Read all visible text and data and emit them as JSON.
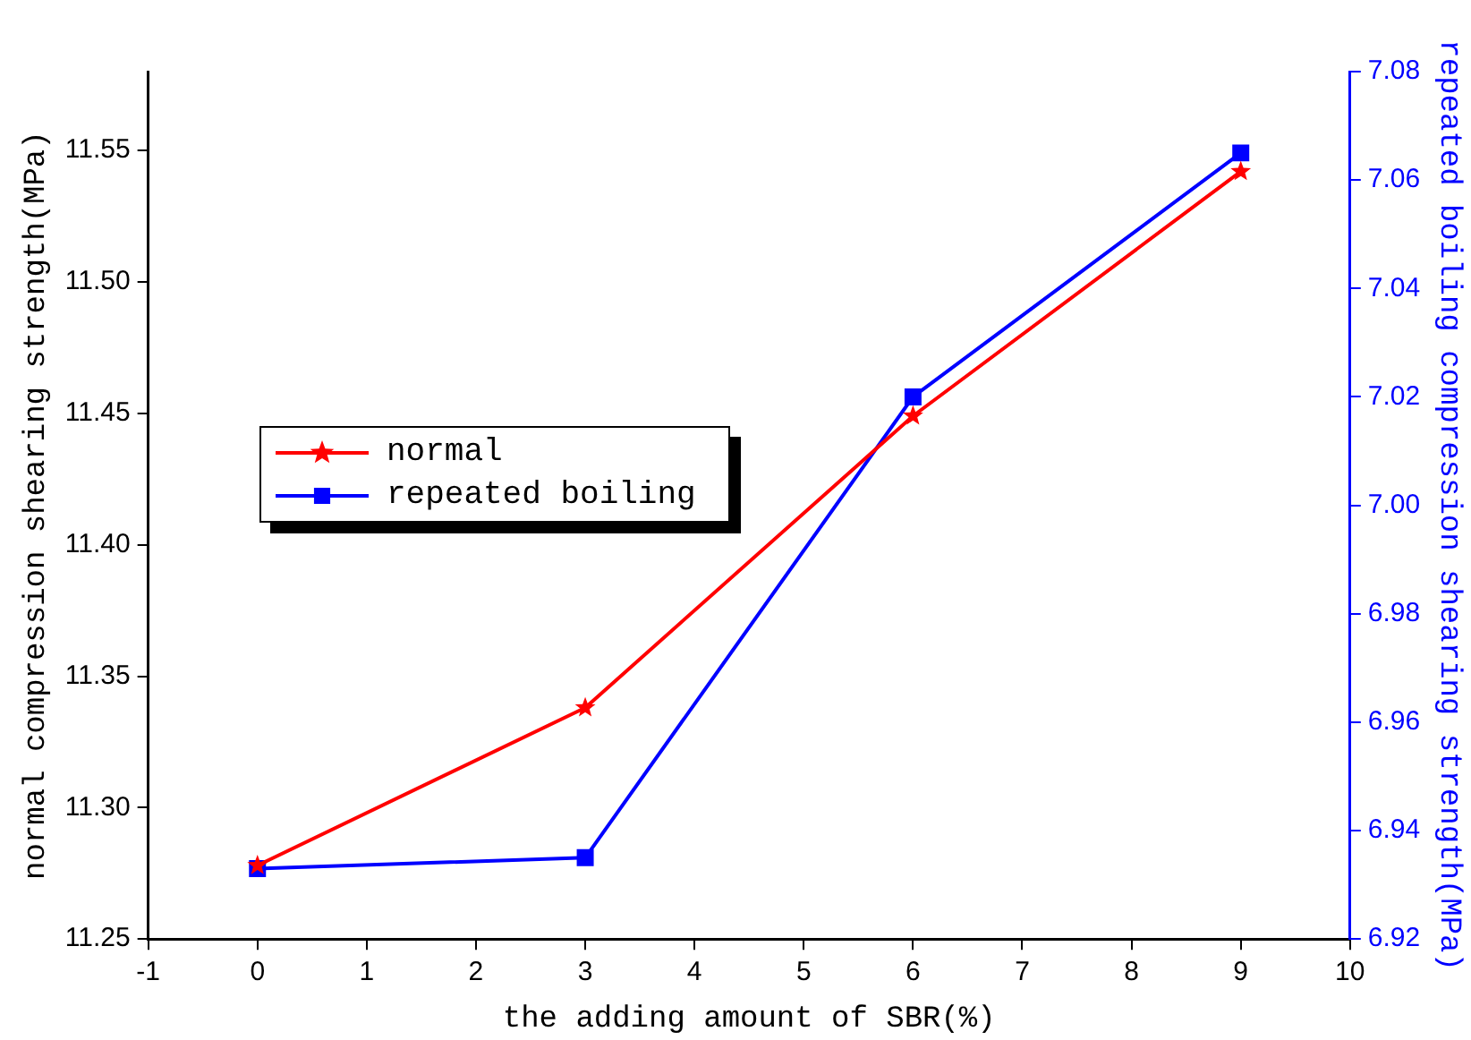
{
  "chart_data": {
    "type": "line",
    "xlabel": "the adding amount of SBR(%)",
    "ylabel": "normal compression shearing strength(MPa)",
    "y2label": "repeated boiling compression shearing strength(MPa)",
    "x": [
      0,
      3,
      6,
      9
    ],
    "series": [
      {
        "name": "normal",
        "color": "#ff0000",
        "marker": "star",
        "values": [
          11.278,
          11.338,
          11.449,
          11.542
        ]
      },
      {
        "name": "repeated boiling",
        "color": "#0000ff",
        "marker": "square",
        "axis": "y2",
        "values": [
          6.933,
          6.935,
          7.02,
          7.065
        ]
      }
    ],
    "xlim": [
      -1,
      10
    ],
    "xticks": [
      -1,
      0,
      1,
      2,
      3,
      4,
      5,
      6,
      7,
      8,
      9,
      10
    ],
    "ylim": [
      11.25,
      11.58
    ],
    "yticks": [
      11.25,
      {
        "value": 11.3,
        "label": "11.30"
      },
      11.35,
      {
        "value": 11.4,
        "label": "11.40"
      },
      11.45,
      {
        "value": 11.5,
        "label": "11.50"
      },
      11.55
    ],
    "y2lim": [
      6.92,
      7.08
    ],
    "y2ticks": [
      6.92,
      6.94,
      6.96,
      6.98,
      {
        "value": 7,
        "label": "7.00"
      },
      7.02,
      7.04,
      7.06,
      7.08
    ],
    "legend": "center left",
    "grid": false,
    "line_style": "solid"
  }
}
